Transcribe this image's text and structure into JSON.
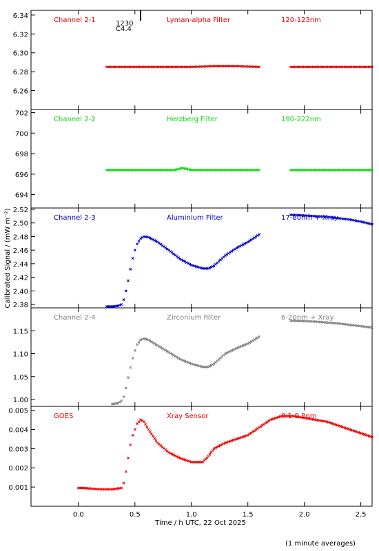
{
  "figure": {
    "ylabel": "Calibrated Signal / (mW m⁻²)",
    "xlabel": "Time / h UTC, 22 Oct 2025",
    "footnote": "(1 minute averages)",
    "flare_marker": {
      "time": "1230",
      "class": "C4.4",
      "x": 0.55
    }
  },
  "chart_data": [
    {
      "type": "scatter",
      "panel_labels": [
        "Channel 2-1",
        "Lyman-alpha Filter",
        "120-123nm"
      ],
      "color": "#dd0000",
      "ylim": [
        6.24,
        6.345
      ],
      "yticks": [
        6.26,
        6.28,
        6.3,
        6.32,
        6.34
      ],
      "ytick_labels": [
        "6.26",
        "6.28",
        "6.30",
        "6.32",
        "6.34"
      ],
      "segments": [
        {
          "x": [
            0.25,
            0.4,
            0.6,
            0.8,
            1.0,
            1.2,
            1.4,
            1.6
          ],
          "y": [
            6.285,
            6.285,
            6.285,
            6.285,
            6.285,
            6.286,
            6.286,
            6.285
          ]
        },
        {
          "x": [
            1.88,
            2.0,
            2.2,
            2.4,
            2.6
          ],
          "y": [
            6.285,
            6.285,
            6.285,
            6.285,
            6.285
          ]
        }
      ]
    },
    {
      "type": "scatter",
      "panel_labels": [
        "Channel 2-2",
        "Herzberg Filter",
        "190-222nm"
      ],
      "color": "#00dd00",
      "ylim": [
        692.7,
        702.3
      ],
      "yticks": [
        694,
        696,
        698,
        700,
        702
      ],
      "ytick_labels": [
        "694",
        "696",
        "698",
        "700",
        "702"
      ],
      "segments": [
        {
          "x": [
            0.25,
            0.5,
            0.85,
            0.92,
            1.0,
            1.3,
            1.6
          ],
          "y": [
            696.4,
            696.4,
            696.4,
            696.6,
            696.4,
            696.4,
            696.4
          ]
        },
        {
          "x": [
            1.88,
            2.1,
            2.3,
            2.6
          ],
          "y": [
            696.4,
            696.4,
            696.4,
            696.4
          ]
        }
      ]
    },
    {
      "type": "scatter",
      "panel_labels": [
        "Channel 2-3",
        "Aluminium Filter",
        "17-80nm + Xray"
      ],
      "color": "#0000cc",
      "ylim": [
        2.375,
        2.522
      ],
      "yticks": [
        2.38,
        2.4,
        2.42,
        2.44,
        2.46,
        2.48,
        2.5,
        2.52
      ],
      "ytick_labels": [
        "2.38",
        "2.40",
        "2.42",
        "2.44",
        "2.46",
        "2.48",
        "2.50",
        "2.52"
      ],
      "segments": [
        {
          "x": [
            0.25,
            0.3,
            0.35,
            0.38,
            0.4,
            0.42,
            0.44,
            0.46,
            0.48,
            0.5,
            0.52,
            0.55,
            0.58,
            0.62,
            0.7,
            0.8,
            0.9,
            1.0,
            1.1,
            1.15,
            1.2,
            1.3,
            1.4,
            1.5,
            1.6
          ],
          "y": [
            2.377,
            2.377,
            2.378,
            2.38,
            2.387,
            2.4,
            2.415,
            2.432,
            2.448,
            2.46,
            2.469,
            2.477,
            2.48,
            2.479,
            2.472,
            2.46,
            2.447,
            2.438,
            2.433,
            2.433,
            2.437,
            2.452,
            2.463,
            2.472,
            2.483
          ]
        },
        {
          "x": [
            1.88,
            2.0,
            2.1,
            2.2,
            2.3,
            2.4,
            2.5,
            2.6
          ],
          "y": [
            2.512,
            2.511,
            2.51,
            2.509,
            2.507,
            2.505,
            2.502,
            2.498
          ]
        }
      ]
    },
    {
      "type": "scatter",
      "panel_labels": [
        "Channel 2-4",
        "Zirconium Filter",
        "6-20nm + Xray"
      ],
      "color": "#808080",
      "ylim": [
        0.985,
        1.2
      ],
      "yticks": [
        1.0,
        1.05,
        1.1,
        1.15
      ],
      "ytick_labels": [
        "1.00",
        "1.05",
        "1.10",
        "1.15"
      ],
      "segments": [
        {
          "x": [
            0.3,
            0.35,
            0.38,
            0.4,
            0.42,
            0.44,
            0.46,
            0.48,
            0.5,
            0.52,
            0.55,
            0.58,
            0.62,
            0.7,
            0.8,
            0.9,
            1.0,
            1.1,
            1.15,
            1.2,
            1.3,
            1.4,
            1.5,
            1.6
          ],
          "y": [
            0.99,
            0.992,
            0.997,
            1.006,
            1.025,
            1.048,
            1.07,
            1.09,
            1.107,
            1.12,
            1.13,
            1.133,
            1.13,
            1.118,
            1.103,
            1.088,
            1.078,
            1.071,
            1.071,
            1.078,
            1.1,
            1.112,
            1.122,
            1.137
          ]
        },
        {
          "x": [
            1.88,
            2.0,
            2.1,
            2.2,
            2.3,
            2.4,
            2.5,
            2.6
          ],
          "y": [
            1.172,
            1.171,
            1.17,
            1.168,
            1.166,
            1.163,
            1.16,
            1.157
          ]
        }
      ]
    },
    {
      "type": "scatter",
      "panel_labels": [
        "GOES",
        "Xray Sensor",
        "0.1-0.8nm"
      ],
      "color": "#ee0000",
      "ylim": [
        0.0,
        0.0052
      ],
      "yticks": [
        0.001,
        0.002,
        0.003,
        0.004,
        0.005
      ],
      "ytick_labels": [
        "0.001",
        "0.002",
        "0.003",
        "0.004",
        "0.005"
      ],
      "segments": [
        {
          "x": [
            0.0,
            0.05,
            0.1,
            0.2,
            0.3,
            0.38,
            0.4,
            0.42,
            0.44,
            0.46,
            0.48,
            0.5,
            0.52,
            0.55,
            0.58,
            0.62,
            0.7,
            0.8,
            0.9,
            1.0,
            1.05,
            1.1,
            1.15,
            1.2,
            1.3,
            1.4,
            1.5,
            1.6,
            1.7,
            1.8,
            1.9,
            2.0,
            2.2,
            2.4,
            2.6
          ],
          "y": [
            0.00095,
            0.00095,
            0.00092,
            0.00088,
            0.00088,
            0.00095,
            0.0012,
            0.0018,
            0.0025,
            0.0032,
            0.0037,
            0.004,
            0.0043,
            0.0045,
            0.0044,
            0.004,
            0.0033,
            0.0028,
            0.0025,
            0.0023,
            0.0023,
            0.0023,
            0.0026,
            0.003,
            0.0033,
            0.0035,
            0.0037,
            0.0041,
            0.0045,
            0.0047,
            0.0047,
            0.0046,
            0.0044,
            0.004,
            0.0036
          ]
        }
      ]
    }
  ],
  "xaxis": {
    "xlim": [
      -0.42,
      2.6
    ],
    "ticks": [
      0.0,
      0.5,
      1.0,
      1.5,
      2.0,
      2.5
    ],
    "tick_labels": [
      "0.0",
      "0.5",
      "1.0",
      "1.5",
      "2.0",
      "2.5"
    ]
  }
}
